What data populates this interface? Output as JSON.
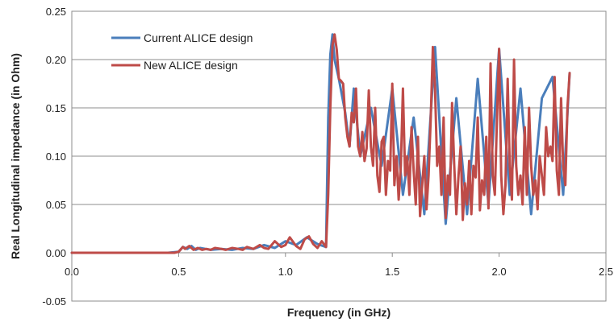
{
  "chart_data": {
    "type": "line",
    "title": "",
    "xlabel": "Frequency (in GHz)",
    "ylabel": "Real Longitudinal impedance (in Ohm)",
    "xlim": [
      0.0,
      2.5
    ],
    "ylim": [
      -0.05,
      0.25
    ],
    "x_ticks": [
      "0.0",
      "0.5",
      "1.0",
      "1.5",
      "2.0",
      "2.5"
    ],
    "x_tick_values": [
      0.0,
      0.5,
      1.0,
      1.5,
      2.0,
      2.5
    ],
    "y_ticks": [
      "-0.05",
      "0.00",
      "0.05",
      "0.10",
      "0.15",
      "0.20",
      "0.25"
    ],
    "y_tick_values": [
      -0.05,
      0.0,
      0.05,
      0.1,
      0.15,
      0.2,
      0.25
    ],
    "grid": "horizontal",
    "legend_position": "top-left",
    "series": [
      {
        "name": "Current ALICE design",
        "color": "#4a7ebb",
        "x": [
          0.0,
          0.45,
          0.5,
          0.52,
          0.54,
          0.56,
          0.58,
          0.6,
          0.65,
          0.7,
          0.75,
          0.8,
          0.85,
          0.9,
          0.95,
          1.0,
          1.05,
          1.1,
          1.15,
          1.19,
          1.2,
          1.21,
          1.22,
          1.23,
          1.25,
          1.28,
          1.3,
          1.32,
          1.35,
          1.4,
          1.45,
          1.5,
          1.55,
          1.6,
          1.65,
          1.7,
          1.75,
          1.8,
          1.85,
          1.9,
          1.95,
          2.0,
          2.05,
          2.1,
          2.15,
          2.2,
          2.25,
          2.3,
          2.33
        ],
        "values": [
          0.0,
          0.0,
          0.001,
          0.006,
          0.004,
          0.007,
          0.003,
          0.005,
          0.003,
          0.004,
          0.003,
          0.005,
          0.004,
          0.008,
          0.005,
          0.012,
          0.008,
          0.016,
          0.009,
          0.006,
          0.14,
          0.205,
          0.226,
          0.2,
          0.18,
          0.145,
          0.11,
          0.17,
          0.1,
          0.15,
          0.09,
          0.17,
          0.06,
          0.14,
          0.04,
          0.213,
          0.03,
          0.16,
          0.04,
          0.18,
          0.05,
          0.211,
          0.06,
          0.17,
          0.04,
          0.16,
          0.182,
          0.06,
          0.186
        ]
      },
      {
        "name": "New ALICE design",
        "color": "#be4b48",
        "x": [
          0.0,
          0.4,
          0.45,
          0.48,
          0.5,
          0.52,
          0.53,
          0.55,
          0.57,
          0.59,
          0.61,
          0.63,
          0.65,
          0.67,
          0.7,
          0.72,
          0.75,
          0.78,
          0.8,
          0.82,
          0.85,
          0.88,
          0.9,
          0.92,
          0.95,
          0.98,
          1.0,
          1.02,
          1.05,
          1.07,
          1.09,
          1.11,
          1.13,
          1.15,
          1.17,
          1.19,
          1.2,
          1.21,
          1.22,
          1.23,
          1.24,
          1.25,
          1.26,
          1.27,
          1.28,
          1.29,
          1.3,
          1.31,
          1.32,
          1.33,
          1.34,
          1.35,
          1.36,
          1.37,
          1.38,
          1.39,
          1.4,
          1.41,
          1.42,
          1.43,
          1.44,
          1.45,
          1.46,
          1.47,
          1.48,
          1.49,
          1.5,
          1.51,
          1.52,
          1.53,
          1.54,
          1.55,
          1.56,
          1.57,
          1.58,
          1.59,
          1.6,
          1.61,
          1.62,
          1.63,
          1.64,
          1.65,
          1.66,
          1.67,
          1.68,
          1.69,
          1.7,
          1.71,
          1.72,
          1.73,
          1.74,
          1.75,
          1.76,
          1.77,
          1.78,
          1.79,
          1.8,
          1.81,
          1.82,
          1.83,
          1.84,
          1.85,
          1.86,
          1.87,
          1.88,
          1.89,
          1.9,
          1.91,
          1.92,
          1.93,
          1.94,
          1.95,
          1.96,
          1.97,
          1.98,
          1.99,
          2.0,
          2.01,
          2.02,
          2.03,
          2.04,
          2.05,
          2.06,
          2.07,
          2.08,
          2.09,
          2.1,
          2.11,
          2.12,
          2.13,
          2.14,
          2.15,
          2.16,
          2.17,
          2.18,
          2.19,
          2.2,
          2.21,
          2.22,
          2.23,
          2.24,
          2.25,
          2.26,
          2.27,
          2.28,
          2.29,
          2.3,
          2.31,
          2.32,
          2.33
        ],
        "values": [
          0.0,
          0.0,
          0.0,
          0.0,
          0.001,
          0.006,
          0.004,
          0.007,
          0.003,
          0.005,
          0.003,
          0.004,
          0.003,
          0.005,
          0.004,
          0.003,
          0.005,
          0.004,
          0.003,
          0.006,
          0.004,
          0.008,
          0.005,
          0.004,
          0.012,
          0.006,
          0.008,
          0.016,
          0.007,
          0.004,
          0.014,
          0.017,
          0.009,
          0.005,
          0.012,
          0.006,
          0.06,
          0.15,
          0.215,
          0.226,
          0.21,
          0.18,
          0.178,
          0.175,
          0.14,
          0.12,
          0.11,
          0.145,
          0.135,
          0.17,
          0.11,
          0.1,
          0.125,
          0.095,
          0.108,
          0.168,
          0.11,
          0.09,
          0.15,
          0.08,
          0.063,
          0.115,
          0.12,
          0.06,
          0.095,
          0.085,
          0.175,
          0.07,
          0.1,
          0.055,
          0.09,
          0.17,
          0.08,
          0.1,
          0.06,
          0.13,
          0.085,
          0.05,
          0.12,
          0.038,
          0.07,
          0.1,
          0.045,
          0.08,
          0.14,
          0.213,
          0.17,
          0.09,
          0.11,
          0.06,
          0.14,
          0.036,
          0.08,
          0.06,
          0.155,
          0.09,
          0.04,
          0.08,
          0.11,
          0.034,
          0.072,
          0.05,
          0.095,
          0.04,
          0.09,
          0.078,
          0.14,
          0.044,
          0.075,
          0.06,
          0.12,
          0.046,
          0.196,
          0.08,
          0.06,
          0.14,
          0.211,
          0.08,
          0.04,
          0.07,
          0.18,
          0.09,
          0.055,
          0.2,
          0.09,
          0.06,
          0.08,
          0.05,
          0.13,
          0.06,
          0.15,
          0.09,
          0.06,
          0.075,
          0.045,
          0.1,
          0.08,
          0.06,
          0.13,
          0.1,
          0.11,
          0.095,
          0.182,
          0.085,
          0.06,
          0.16,
          0.09,
          0.07,
          0.15,
          0.186
        ]
      }
    ]
  }
}
